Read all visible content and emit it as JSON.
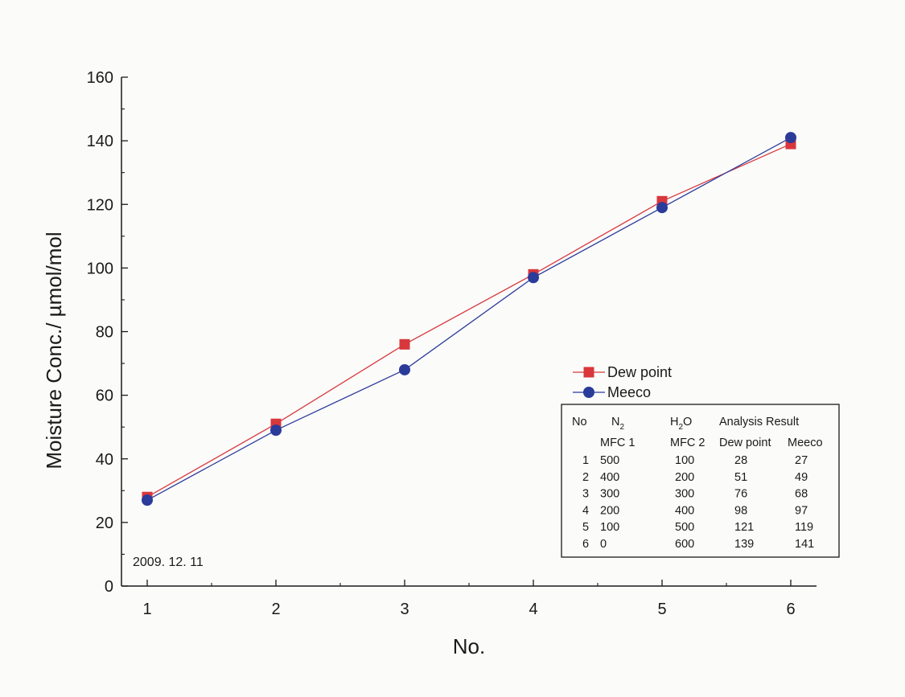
{
  "chart_data": {
    "type": "line",
    "xlabel": "No.",
    "ylabel": "Moisture Conc./ µmol/mol",
    "x": [
      1,
      2,
      3,
      4,
      5,
      6
    ],
    "xlim": [
      0.8,
      6.2
    ],
    "ylim": [
      0,
      160
    ],
    "xticks": [
      1,
      2,
      3,
      4,
      5,
      6
    ],
    "yticks": [
      0,
      20,
      40,
      60,
      80,
      100,
      120,
      140,
      160
    ],
    "grid": false,
    "legend_position": "lower-right",
    "series": [
      {
        "name": "Dew point",
        "marker": "square",
        "color": "#d8373c",
        "values": [
          28,
          51,
          76,
          98,
          121,
          139
        ]
      },
      {
        "name": "Meeco",
        "marker": "circle",
        "color": "#2b3b9a",
        "values": [
          27,
          49,
          68,
          97,
          119,
          141
        ]
      }
    ],
    "annotation": "2009.  12.  11",
    "table": {
      "header1": [
        "No",
        "N",
        "H",
        "O",
        "Analysis Result"
      ],
      "n_sub": "2",
      "h_sub": "2",
      "header2": [
        "MFC 1",
        "MFC 2",
        "Dew point",
        "Meeco"
      ],
      "rows": [
        [
          "1",
          "500",
          "100",
          "28",
          "27"
        ],
        [
          "2",
          "400",
          "200",
          "51",
          "49"
        ],
        [
          "3",
          "300",
          "300",
          "76",
          "68"
        ],
        [
          "4",
          "200",
          "400",
          "98",
          "97"
        ],
        [
          "5",
          "100",
          "500",
          "121",
          "119"
        ],
        [
          "6",
          "0",
          "600",
          "139",
          "141"
        ]
      ]
    }
  }
}
